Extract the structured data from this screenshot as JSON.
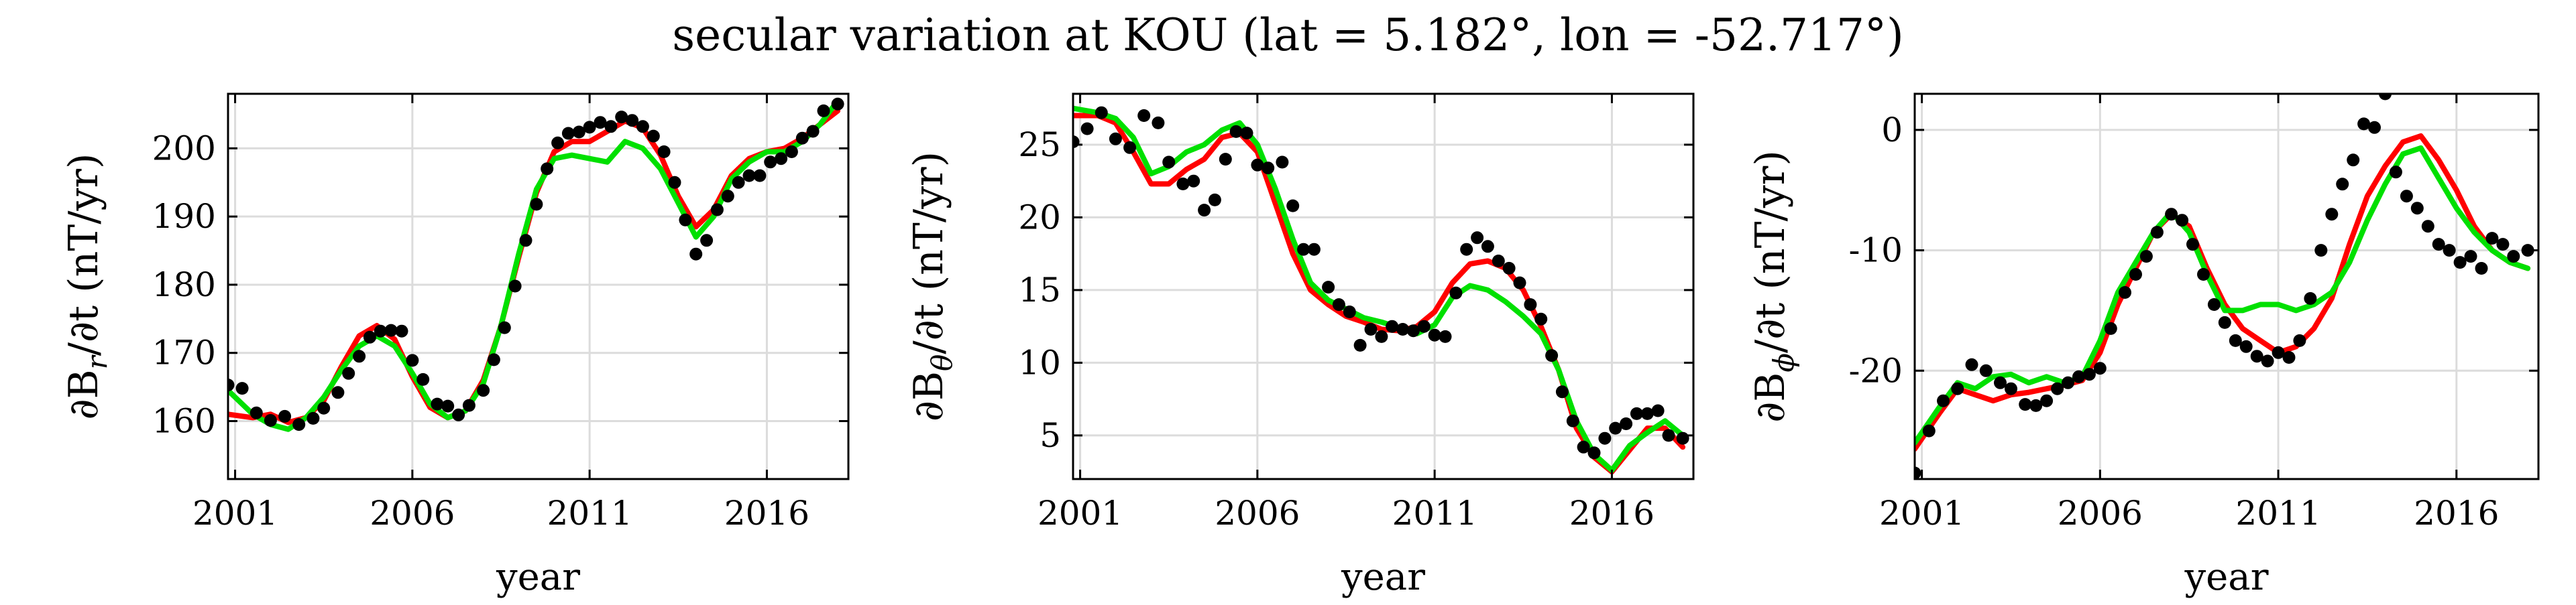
{
  "figure": {
    "title": "secular variation at KOU (lat = 5.182°, lon = -52.717°)"
  },
  "colors": {
    "obs": "#000000",
    "red": "#ff0000",
    "green": "#00e000",
    "grid": "#dcdcdc"
  },
  "chart_data": [
    {
      "type": "scatter",
      "ylabel": "∂Br/∂t (nT/yr)",
      "ylabel_main": "∂B",
      "ylabel_sub": "r",
      "ylabel_rest": "/∂t (nT/yr)",
      "xlabel": "year",
      "xlim": [
        2000.8,
        2018.3
      ],
      "ylim": [
        151.5,
        208
      ],
      "xticks": [
        2001,
        2006,
        2011,
        2016
      ],
      "xticklabels": [
        "2001",
        "2006",
        "2011",
        "2016"
      ],
      "yticks": [
        160,
        170,
        180,
        190,
        200
      ],
      "yticklabels": [
        "160",
        "170",
        "180",
        "190",
        "200"
      ],
      "grid": true,
      "series": [
        {
          "kind": "points",
          "color": "#000000",
          "x": [
            2000.8,
            2001.2,
            2001.6,
            2002.0,
            2002.4,
            2002.8,
            2003.2,
            2003.5,
            2003.9,
            2004.2,
            2004.5,
            2004.8,
            2005.1,
            2005.4,
            2005.7,
            2006.0,
            2006.3,
            2006.7,
            2007.0,
            2007.3,
            2007.6,
            2008.0,
            2008.3,
            2008.6,
            2008.9,
            2009.2,
            2009.5,
            2009.8,
            2010.1,
            2010.4,
            2010.7,
            2011.0,
            2011.3,
            2011.6,
            2011.9,
            2012.2,
            2012.5,
            2012.8,
            2013.1,
            2013.4,
            2013.7,
            2014.0,
            2014.3,
            2014.6,
            2014.9,
            2015.2,
            2015.5,
            2015.8,
            2016.1,
            2016.4,
            2016.7,
            2017.0,
            2017.3,
            2017.6,
            2018.0
          ],
          "y": [
            165.3,
            164.8,
            161.2,
            160.1,
            160.7,
            159.5,
            160.4,
            161.9,
            164.2,
            167.0,
            169.5,
            172.3,
            173.2,
            173.3,
            173.2,
            168.9,
            166.1,
            162.5,
            162.2,
            160.9,
            162.3,
            164.5,
            169.0,
            173.7,
            179.8,
            186.5,
            191.8,
            197.0,
            200.8,
            202.2,
            202.4,
            203.1,
            203.8,
            203.2,
            204.6,
            204.1,
            203.2,
            201.8,
            199.5,
            195.0,
            189.5,
            184.5,
            186.5,
            191.0,
            193.0,
            195.0,
            196.0,
            196.0,
            198.0,
            198.5,
            199.5,
            201.5,
            202.5,
            205.5,
            206.5
          ]
        },
        {
          "kind": "line",
          "color": "#ff0000",
          "x": [
            2000.8,
            2001.5,
            2002.0,
            2002.5,
            2003.0,
            2003.5,
            2004.0,
            2004.5,
            2005.0,
            2005.5,
            2006.0,
            2006.5,
            2007.0,
            2007.5,
            2008.0,
            2008.5,
            2009.0,
            2009.5,
            2010.0,
            2010.5,
            2011.0,
            2011.5,
            2012.0,
            2012.5,
            2013.0,
            2013.5,
            2014.0,
            2014.5,
            2015.0,
            2015.5,
            2016.0,
            2016.5,
            2017.0,
            2017.5,
            2018.0
          ],
          "y": [
            161.0,
            160.5,
            161.0,
            159.8,
            160.5,
            163.0,
            168.0,
            172.5,
            174.0,
            172.0,
            166.5,
            162.0,
            160.5,
            161.5,
            166.0,
            174.0,
            184.0,
            193.5,
            199.5,
            201.0,
            201.0,
            202.5,
            204.0,
            203.0,
            199.0,
            193.0,
            188.5,
            191.0,
            196.0,
            198.5,
            199.5,
            200.0,
            201.5,
            203.5,
            205.5
          ]
        },
        {
          "kind": "line",
          "color": "#00e000",
          "x": [
            2000.8,
            2001.5,
            2002.0,
            2002.5,
            2003.0,
            2003.5,
            2004.0,
            2004.5,
            2005.0,
            2005.5,
            2006.0,
            2006.5,
            2007.0,
            2007.5,
            2008.0,
            2008.5,
            2009.0,
            2009.5,
            2010.0,
            2010.5,
            2011.0,
            2011.5,
            2012.0,
            2012.5,
            2013.0,
            2013.5,
            2014.0,
            2014.5,
            2015.0,
            2015.5,
            2016.0,
            2016.5,
            2017.0,
            2017.5,
            2018.0
          ],
          "y": [
            164.5,
            161.0,
            159.5,
            158.8,
            160.5,
            163.5,
            167.5,
            171.0,
            172.5,
            171.0,
            167.0,
            162.5,
            160.5,
            161.5,
            165.5,
            174.0,
            184.5,
            194.0,
            198.5,
            199.0,
            198.5,
            198.0,
            201.0,
            200.0,
            197.0,
            192.0,
            187.0,
            190.0,
            195.5,
            198.0,
            199.5,
            199.5,
            201.0,
            203.5,
            207.0
          ]
        }
      ]
    },
    {
      "type": "scatter",
      "ylabel": "∂Bθ/∂t (nT/yr)",
      "ylabel_main": "∂B",
      "ylabel_sub": "θ",
      "ylabel_rest": "/∂t (nT/yr)",
      "xlabel": "year",
      "xlim": [
        2000.8,
        2018.3
      ],
      "ylim": [
        2,
        28.5
      ],
      "xticks": [
        2001,
        2006,
        2011,
        2016
      ],
      "xticklabels": [
        "2001",
        "2006",
        "2011",
        "2016"
      ],
      "yticks": [
        5,
        10,
        15,
        20,
        25
      ],
      "yticklabels": [
        "5",
        "10",
        "15",
        "20",
        "25"
      ],
      "grid": true,
      "series": [
        {
          "kind": "points",
          "color": "#000000",
          "x": [
            2000.8,
            2001.2,
            2001.6,
            2002.0,
            2002.4,
            2002.8,
            2003.2,
            2003.5,
            2003.9,
            2004.2,
            2004.5,
            2004.8,
            2005.1,
            2005.4,
            2005.7,
            2006.0,
            2006.3,
            2006.7,
            2007.0,
            2007.3,
            2007.6,
            2008.0,
            2008.3,
            2008.6,
            2008.9,
            2009.2,
            2009.5,
            2009.8,
            2010.1,
            2010.4,
            2010.7,
            2011.0,
            2011.3,
            2011.6,
            2011.9,
            2012.2,
            2012.5,
            2012.8,
            2013.1,
            2013.4,
            2013.7,
            2014.0,
            2014.3,
            2014.6,
            2014.9,
            2015.2,
            2015.5,
            2015.8,
            2016.1,
            2016.4,
            2016.7,
            2017.0,
            2017.3,
            2017.6,
            2018.0
          ],
          "y": [
            25.2,
            26.1,
            27.2,
            25.4,
            24.8,
            27.0,
            26.5,
            23.8,
            22.3,
            22.5,
            20.5,
            21.2,
            24.0,
            25.9,
            25.8,
            23.6,
            23.4,
            23.8,
            20.8,
            17.8,
            17.8,
            15.2,
            14.0,
            13.5,
            11.2,
            12.3,
            11.8,
            12.5,
            12.3,
            12.2,
            12.5,
            11.9,
            11.8,
            14.8,
            17.8,
            18.6,
            18.0,
            17.0,
            16.5,
            15.5,
            14.0,
            13.0,
            10.5,
            8.0,
            6.0,
            4.2,
            3.8,
            4.8,
            5.5,
            5.8,
            6.5,
            6.5,
            6.7,
            5.0,
            4.8
          ]
        },
        {
          "kind": "line",
          "color": "#ff0000",
          "x": [
            2000.8,
            2001.5,
            2002.0,
            2002.5,
            2003.0,
            2003.5,
            2004.0,
            2004.5,
            2005.0,
            2005.5,
            2006.0,
            2006.5,
            2007.0,
            2007.5,
            2008.0,
            2008.5,
            2009.0,
            2009.5,
            2010.0,
            2010.5,
            2011.0,
            2011.5,
            2012.0,
            2012.5,
            2013.0,
            2013.5,
            2014.0,
            2014.5,
            2015.0,
            2015.5,
            2016.0,
            2016.5,
            2017.0,
            2017.5,
            2018.0
          ],
          "y": [
            27.0,
            27.0,
            26.5,
            24.5,
            22.3,
            22.3,
            23.3,
            24.0,
            25.5,
            25.8,
            24.5,
            21.0,
            17.5,
            15.0,
            14.0,
            13.2,
            12.8,
            12.3,
            12.2,
            12.5,
            13.5,
            15.5,
            16.8,
            17.0,
            16.5,
            15.0,
            12.5,
            9.5,
            5.5,
            3.5,
            2.5,
            4.0,
            5.5,
            5.5,
            4.2
          ]
        },
        {
          "kind": "line",
          "color": "#00e000",
          "x": [
            2000.8,
            2001.5,
            2002.0,
            2002.5,
            2003.0,
            2003.5,
            2004.0,
            2004.5,
            2005.0,
            2005.5,
            2006.0,
            2006.5,
            2007.0,
            2007.5,
            2008.0,
            2008.5,
            2009.0,
            2009.5,
            2010.0,
            2010.5,
            2011.0,
            2011.5,
            2012.0,
            2012.5,
            2013.0,
            2013.5,
            2014.0,
            2014.5,
            2015.0,
            2015.5,
            2016.0,
            2016.5,
            2017.0,
            2017.5,
            2018.0
          ],
          "y": [
            27.5,
            27.2,
            26.8,
            25.5,
            23.0,
            23.5,
            24.5,
            25.0,
            26.0,
            26.5,
            25.0,
            22.0,
            18.5,
            15.5,
            14.3,
            13.7,
            13.1,
            12.8,
            12.4,
            12.0,
            12.6,
            14.5,
            15.3,
            15.0,
            14.2,
            13.2,
            12.0,
            9.5,
            6.0,
            3.7,
            2.6,
            4.3,
            5.2,
            6.0,
            5.0
          ]
        }
      ]
    },
    {
      "type": "scatter",
      "ylabel": "∂Bϕ/∂t (nT/yr)",
      "ylabel_main": "∂B",
      "ylabel_sub": "ϕ",
      "ylabel_rest": "/∂t (nT/yr)",
      "xlabel": "year",
      "xlim": [
        2000.8,
        2018.3
      ],
      "ylim": [
        -29,
        3
      ],
      "xticks": [
        2001,
        2006,
        2011,
        2016
      ],
      "xticklabels": [
        "2001",
        "2006",
        "2011",
        "2016"
      ],
      "yticks": [
        -20,
        -10,
        0
      ],
      "yticklabels": [
        "-20",
        "-10",
        "0"
      ],
      "grid": true,
      "series": [
        {
          "kind": "points",
          "color": "#000000",
          "x": [
            2000.8,
            2001.2,
            2001.6,
            2002.0,
            2002.4,
            2002.8,
            2003.2,
            2003.5,
            2003.9,
            2004.2,
            2004.5,
            2004.8,
            2005.1,
            2005.4,
            2005.7,
            2006.0,
            2006.3,
            2006.7,
            2007.0,
            2007.3,
            2007.6,
            2008.0,
            2008.3,
            2008.6,
            2008.9,
            2009.2,
            2009.5,
            2009.8,
            2010.1,
            2010.4,
            2010.7,
            2011.0,
            2011.3,
            2011.6,
            2011.9,
            2012.2,
            2012.5,
            2012.8,
            2013.1,
            2013.4,
            2013.7,
            2014.0,
            2014.3,
            2014.6,
            2014.9,
            2015.2,
            2015.5,
            2015.8,
            2016.1,
            2016.4,
            2016.7,
            2017.0,
            2017.3,
            2017.6,
            2018.0
          ],
          "y": [
            -28.5,
            -25.0,
            -22.5,
            -21.5,
            -19.5,
            -20.0,
            -21.0,
            -21.5,
            -22.8,
            -22.9,
            -22.5,
            -21.5,
            -21.0,
            -20.5,
            -20.3,
            -19.8,
            -16.5,
            -13.5,
            -12.0,
            -10.5,
            -8.5,
            -7.0,
            -7.5,
            -9.5,
            -12.0,
            -14.5,
            -16.0,
            -17.5,
            -18.0,
            -18.8,
            -19.2,
            -18.5,
            -18.9,
            -17.5,
            -14.0,
            -10.0,
            -7.0,
            -4.5,
            -2.5,
            0.5,
            0.2,
            3.0,
            -3.5,
            -5.5,
            -6.5,
            -8.0,
            -9.5,
            -10.0,
            -11.0,
            -10.5,
            -11.5,
            -9.0,
            -9.5,
            -10.5,
            -10.0
          ]
        },
        {
          "kind": "line",
          "color": "#ff0000",
          "x": [
            2000.8,
            2001.5,
            2002.0,
            2002.5,
            2003.0,
            2003.5,
            2004.0,
            2004.5,
            2005.0,
            2005.5,
            2006.0,
            2006.5,
            2007.0,
            2007.5,
            2008.0,
            2008.5,
            2009.0,
            2009.5,
            2010.0,
            2010.5,
            2011.0,
            2011.5,
            2012.0,
            2012.5,
            2013.0,
            2013.5,
            2014.0,
            2014.5,
            2015.0,
            2015.5,
            2016.0,
            2016.5,
            2017.0,
            2017.5,
            2018.0
          ],
          "y": [
            -26.5,
            -23.5,
            -21.5,
            -22.0,
            -22.5,
            -22.0,
            -21.8,
            -21.5,
            -21.2,
            -20.8,
            -18.5,
            -14.5,
            -11.5,
            -8.5,
            -7.0,
            -8.0,
            -11.5,
            -14.5,
            -16.5,
            -17.5,
            -18.5,
            -18.0,
            -16.5,
            -14.0,
            -9.5,
            -5.5,
            -3.0,
            -1.0,
            -0.5,
            -2.5,
            -5.0,
            -8.0,
            -10.0,
            -11.0,
            -11.5
          ]
        },
        {
          "kind": "line",
          "color": "#00e000",
          "x": [
            2000.8,
            2001.5,
            2002.0,
            2002.5,
            2003.0,
            2003.5,
            2004.0,
            2004.5,
            2005.0,
            2005.5,
            2006.0,
            2006.5,
            2007.0,
            2007.5,
            2008.0,
            2008.5,
            2009.0,
            2009.5,
            2010.0,
            2010.5,
            2011.0,
            2011.5,
            2012.0,
            2012.5,
            2013.0,
            2013.5,
            2014.0,
            2014.5,
            2015.0,
            2015.5,
            2016.0,
            2016.5,
            2017.0,
            2017.5,
            2018.0
          ],
          "y": [
            -26.0,
            -23.0,
            -21.0,
            -21.5,
            -20.5,
            -20.3,
            -21.0,
            -20.5,
            -21.0,
            -20.5,
            -17.5,
            -13.5,
            -11.0,
            -8.5,
            -6.8,
            -8.5,
            -12.0,
            -15.0,
            -15.0,
            -14.5,
            -14.5,
            -15.0,
            -14.5,
            -13.5,
            -11.0,
            -7.5,
            -4.5,
            -2.0,
            -1.5,
            -4.0,
            -6.5,
            -8.5,
            -10.0,
            -11.0,
            -11.5
          ]
        }
      ]
    }
  ]
}
